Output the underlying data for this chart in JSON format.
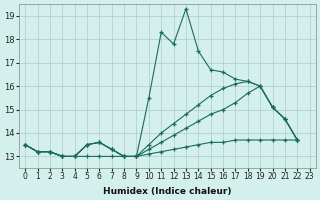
{
  "xlabel": "Humidex (Indice chaleur)",
  "xlim": [
    -0.5,
    23.5
  ],
  "ylim": [
    12.5,
    19.5
  ],
  "yticks": [
    13,
    14,
    15,
    16,
    17,
    18,
    19
  ],
  "xtick_positions": [
    0,
    1,
    2,
    3,
    4,
    5,
    6,
    7,
    8,
    9,
    10,
    11,
    12,
    13,
    14,
    15,
    16,
    17,
    18,
    19,
    20,
    21,
    22,
    23
  ],
  "xtick_labels": [
    "0",
    "1",
    "2",
    "3",
    "4",
    "5",
    "6",
    "7",
    "8",
    "9",
    "10",
    "11",
    "12",
    "13",
    "14",
    "15",
    "16",
    "17",
    "18",
    "19",
    "20",
    "21",
    "22",
    "23"
  ],
  "background_color": "#d4f0ec",
  "grid_color": "#b0ccc8",
  "line_color": "#1a6b5e",
  "series": [
    [
      13.5,
      13.2,
      13.2,
      13.0,
      13.0,
      13.5,
      13.6,
      13.3,
      13.0,
      13.0,
      15.5,
      18.3,
      17.8,
      19.3,
      17.5,
      16.7,
      16.6,
      16.3,
      16.2,
      16.0,
      15.1,
      14.6,
      13.7
    ],
    [
      13.5,
      13.2,
      13.2,
      13.0,
      13.0,
      13.5,
      13.6,
      13.3,
      13.0,
      13.0,
      13.5,
      14.0,
      14.4,
      14.8,
      15.2,
      15.6,
      15.9,
      16.1,
      16.2,
      16.0,
      15.1,
      14.6,
      13.7
    ],
    [
      13.5,
      13.2,
      13.2,
      13.0,
      13.0,
      13.5,
      13.6,
      13.3,
      13.0,
      13.0,
      13.3,
      13.6,
      13.9,
      14.2,
      14.5,
      14.8,
      15.0,
      15.3,
      15.7,
      16.0,
      15.1,
      14.6,
      13.7
    ],
    [
      13.5,
      13.2,
      13.2,
      13.0,
      13.0,
      13.0,
      13.0,
      13.0,
      13.0,
      13.0,
      13.1,
      13.2,
      13.3,
      13.4,
      13.5,
      13.6,
      13.6,
      13.7,
      13.7,
      13.7,
      13.7,
      13.7,
      13.7
    ]
  ]
}
